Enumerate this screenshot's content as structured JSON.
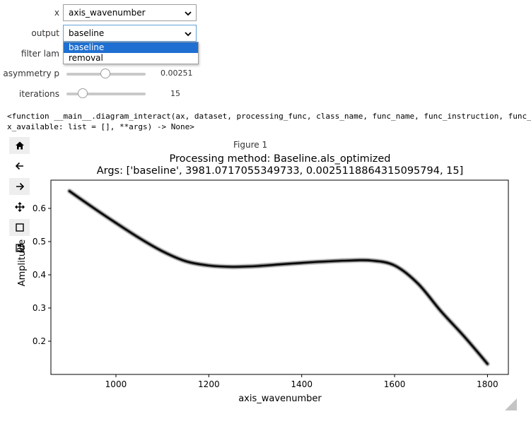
{
  "widgets": {
    "x": {
      "label": "x",
      "value": "axis_wavenumber"
    },
    "output": {
      "label": "output",
      "value": "baseline",
      "options": [
        "baseline",
        "removal"
      ]
    },
    "filter_lam": {
      "label": "filter lam"
    },
    "asymmetry": {
      "label": "asymmetry p",
      "value": "0.00251",
      "fraction": 0.49
    },
    "iterations": {
      "label": "iterations",
      "value": "15",
      "fraction": 0.16
    }
  },
  "signature": {
    "line1": "<function __main__.diagram_interact(ax, dataset, processing_func, class_name, func_name, func_instruction, func_con",
    "line2": "x_available: list = [], **args) -> None>"
  },
  "toolbar_icons": [
    "home-icon",
    "back-arrow-icon",
    "forward-arrow-icon",
    "pan-icon",
    "zoom-rect-icon",
    "save-icon"
  ],
  "figure": {
    "title": "Figure 1"
  },
  "chart_data": {
    "type": "line",
    "title": "Processing method: Baseline.als_optimized",
    "subtitle": "Args: ['baseline', 3981.0717055349733, 0.0025118864315095794, 15]",
    "xlabel": "axis_wavenumber",
    "ylabel": "Amplitude",
    "xlim": [
      860,
      1845
    ],
    "ylim": [
      0.1,
      0.685
    ],
    "xticks": [
      1000,
      1200,
      1400,
      1600,
      1800
    ],
    "yticks": [
      0.2,
      0.3,
      0.4,
      0.5,
      0.6
    ],
    "xtick_labels": [
      "1000",
      "1200",
      "1400",
      "1600",
      "1800"
    ],
    "ytick_labels": [
      "0.2",
      "0.3",
      "0.4",
      "0.5",
      "0.6"
    ],
    "grid": false,
    "line_color": "#000000",
    "series": [
      {
        "x": [
          900,
          950,
          1000,
          1050,
          1100,
          1150,
          1200,
          1250,
          1300,
          1350,
          1400,
          1450,
          1500,
          1550,
          1600,
          1650,
          1700,
          1750,
          1800
        ],
        "values": [
          0.652,
          0.603,
          0.556,
          0.511,
          0.471,
          0.441,
          0.428,
          0.424,
          0.426,
          0.431,
          0.436,
          0.44,
          0.443,
          0.443,
          0.428,
          0.374,
          0.29,
          0.214,
          0.132
        ]
      }
    ]
  }
}
